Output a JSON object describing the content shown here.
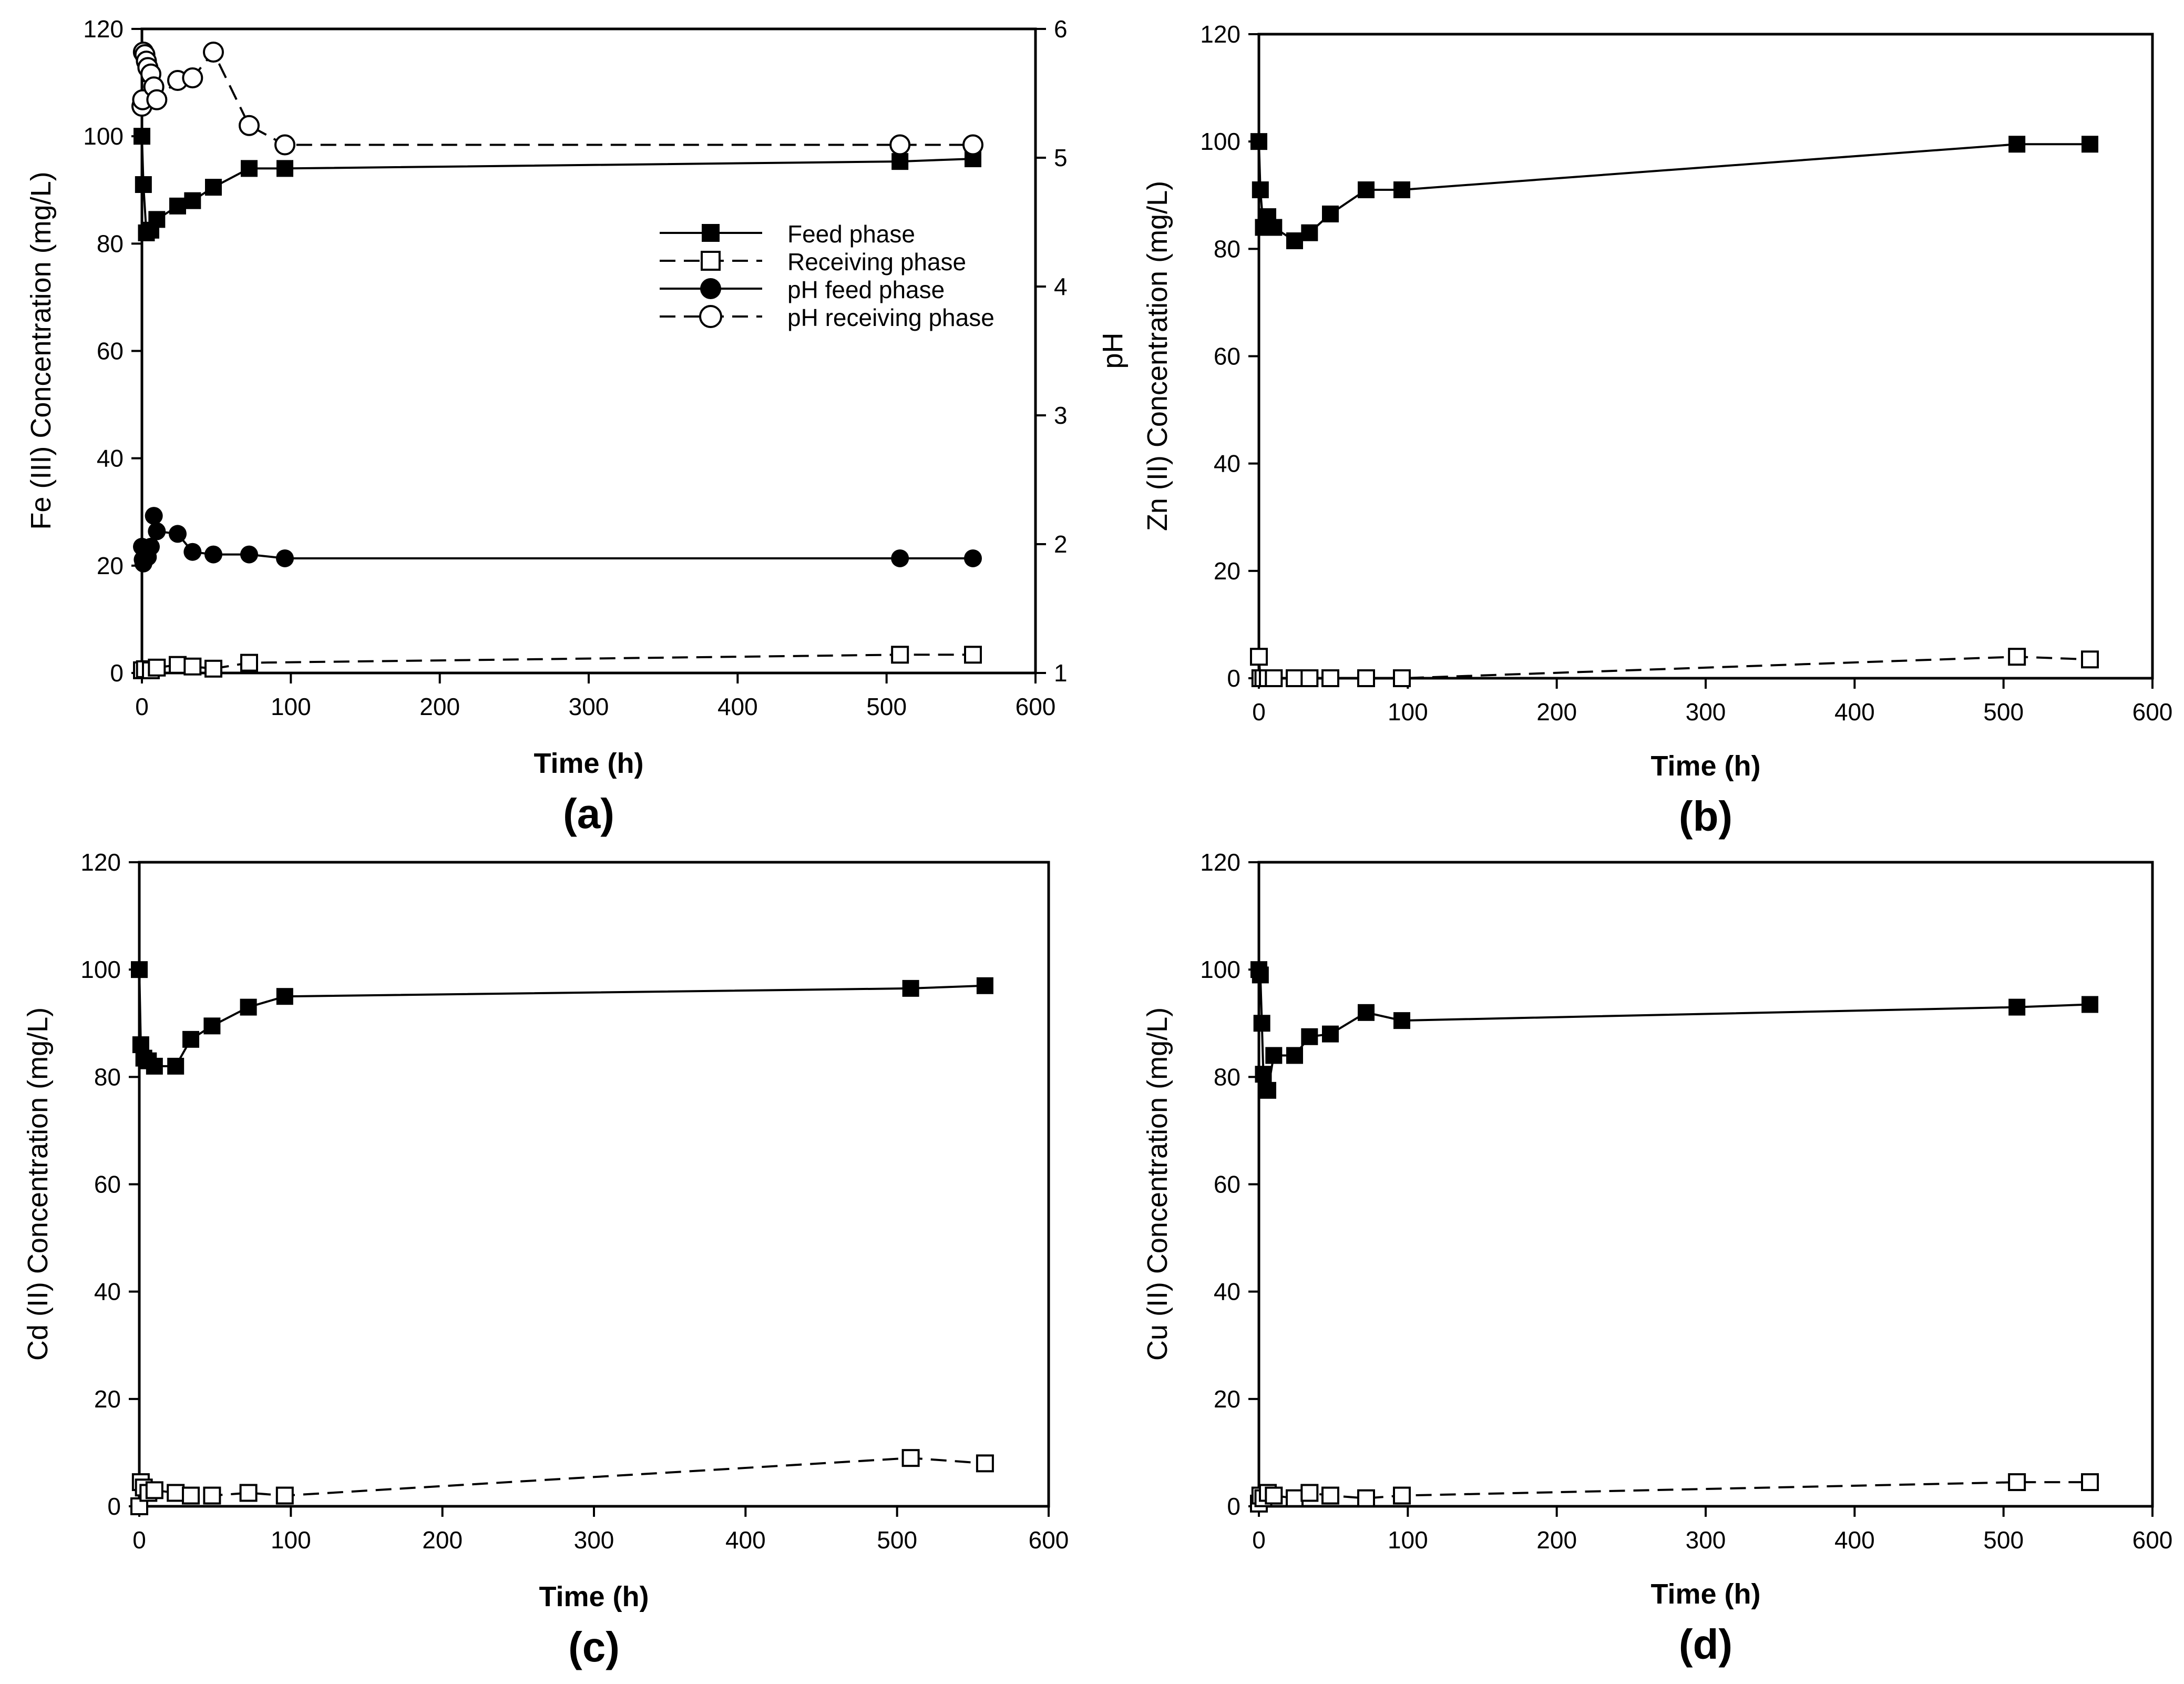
{
  "chart_data": [
    {
      "id": "a",
      "type": "line",
      "panel_label": "(a)",
      "xlabel": "Time (h)",
      "ylabel": "Fe (III) Concentration (mg/L)",
      "y2label": "pH",
      "xlim": [
        0,
        600
      ],
      "ylim": [
        0,
        120
      ],
      "y2lim": [
        1,
        6
      ],
      "xticks": [
        "0",
        "100",
        "200",
        "300",
        "400",
        "500",
        "600"
      ],
      "yticks": [
        "0",
        "20",
        "40",
        "60",
        "80",
        "100",
        "120"
      ],
      "y2ticks": [
        "1",
        "2",
        "3",
        "4",
        "5",
        "6"
      ],
      "legend": [
        "Feed phase",
        "Receiving phase",
        "pH feed phase",
        "pH receiving phase"
      ],
      "series": [
        {
          "name": "Feed phase",
          "axis": "left",
          "marker": "filled-square",
          "line": "solid",
          "x": [
            0,
            1,
            3,
            6,
            10,
            24,
            34,
            48,
            72,
            96,
            509,
            558
          ],
          "y": [
            100,
            91,
            82,
            82.5,
            84.5,
            87,
            88,
            90.5,
            94,
            94,
            95.3,
            95.8
          ]
        },
        {
          "name": "Receiving phase",
          "axis": "left",
          "marker": "open-square",
          "line": "dashed",
          "x": [
            0,
            2,
            6,
            10,
            24,
            34,
            48,
            72,
            509,
            558
          ],
          "y": [
            0.5,
            0.7,
            0.5,
            1,
            1.5,
            1.2,
            0.8,
            1.9,
            3.4,
            3.4
          ]
        },
        {
          "name": "pH feed phase",
          "axis": "right",
          "marker": "filled-circle",
          "line": "solid",
          "x": [
            0,
            0.5,
            1,
            2,
            3,
            4,
            6,
            8,
            10,
            24,
            34,
            48,
            72,
            96,
            509,
            558
          ],
          "y": [
            1.98,
            1.88,
            1.85,
            1.92,
            1.95,
            1.9,
            1.98,
            2.22,
            2.1,
            2.08,
            1.94,
            1.92,
            1.92,
            1.89,
            1.89,
            1.89
          ]
        },
        {
          "name": "pH receiving phase",
          "axis": "right",
          "marker": "open-circle",
          "line": "dashed",
          "x": [
            0,
            0.5,
            1,
            2,
            3,
            4,
            6,
            8,
            10,
            24,
            34,
            48,
            72,
            96,
            509,
            558
          ],
          "y": [
            5.4,
            5.45,
            5.82,
            5.8,
            5.75,
            5.7,
            5.65,
            5.55,
            5.45,
            5.6,
            5.62,
            5.82,
            5.25,
            5.1,
            5.1,
            5.1
          ]
        }
      ]
    },
    {
      "id": "b",
      "type": "line",
      "panel_label": "(b)",
      "xlabel": "Time (h)",
      "ylabel": "Zn (II) Concentration (mg/L)",
      "xlim": [
        0,
        600
      ],
      "ylim": [
        0,
        120
      ],
      "xticks": [
        "0",
        "100",
        "200",
        "300",
        "400",
        "500",
        "600"
      ],
      "yticks": [
        "0",
        "20",
        "40",
        "60",
        "80",
        "100",
        "120"
      ],
      "series": [
        {
          "name": "Feed phase",
          "axis": "left",
          "marker": "filled-square",
          "line": "solid",
          "x": [
            0,
            1,
            3,
            6,
            10,
            24,
            34,
            48,
            72,
            96,
            509,
            558
          ],
          "y": [
            100,
            91,
            84,
            86,
            84,
            81.5,
            83,
            86.5,
            91,
            91,
            99.5,
            99.5
          ]
        },
        {
          "name": "Receiving phase",
          "axis": "left",
          "marker": "open-square",
          "line": "dashed",
          "x": [
            0,
            1,
            3,
            6,
            10,
            24,
            34,
            48,
            72,
            96,
            509,
            558
          ],
          "y": [
            4,
            0,
            0,
            0,
            0,
            0,
            0,
            0,
            0,
            0,
            4,
            3.5
          ]
        }
      ]
    },
    {
      "id": "c",
      "type": "line",
      "panel_label": "(c)",
      "xlabel": "Time (h)",
      "ylabel": "Cd (II) Concentration (mg/L)",
      "xlim": [
        0,
        600
      ],
      "ylim": [
        0,
        120
      ],
      "xticks": [
        "0",
        "100",
        "200",
        "300",
        "400",
        "500",
        "600"
      ],
      "yticks": [
        "0",
        "20",
        "40",
        "60",
        "80",
        "100",
        "120"
      ],
      "series": [
        {
          "name": "Feed phase",
          "axis": "left",
          "marker": "filled-square",
          "line": "solid",
          "x": [
            0,
            1,
            3,
            6,
            10,
            24,
            34,
            48,
            72,
            96,
            509,
            558
          ],
          "y": [
            100,
            86,
            83.5,
            83,
            82,
            82,
            87,
            89.5,
            93,
            95,
            96.5,
            97
          ]
        },
        {
          "name": "Receiving phase",
          "axis": "left",
          "marker": "open-square",
          "line": "dashed",
          "x": [
            0,
            1,
            3,
            6,
            10,
            24,
            34,
            48,
            72,
            96,
            509,
            558
          ],
          "y": [
            0,
            4.5,
            3.5,
            2.5,
            3,
            2.5,
            2,
            2,
            2.5,
            2,
            9,
            8
          ]
        }
      ]
    },
    {
      "id": "d",
      "type": "line",
      "panel_label": "(d)",
      "xlabel": "Time (h)",
      "ylabel": "Cu (II) Concentration (mg/L)",
      "xlim": [
        0,
        600
      ],
      "ylim": [
        0,
        120
      ],
      "xticks": [
        "0",
        "100",
        "200",
        "300",
        "400",
        "500",
        "600"
      ],
      "yticks": [
        "0",
        "20",
        "40",
        "60",
        "80",
        "100",
        "120"
      ],
      "series": [
        {
          "name": "Feed phase",
          "axis": "left",
          "marker": "filled-square",
          "line": "solid",
          "x": [
            0,
            1,
            2,
            3,
            6,
            10,
            24,
            34,
            48,
            72,
            96,
            509,
            558
          ],
          "y": [
            100,
            99,
            90,
            80.5,
            77.5,
            84,
            84,
            87.5,
            88,
            92,
            90.5,
            93,
            93.5
          ]
        },
        {
          "name": "Receiving phase",
          "axis": "left",
          "marker": "open-square",
          "line": "dashed",
          "x": [
            0,
            1,
            3,
            6,
            10,
            24,
            34,
            48,
            72,
            96,
            509,
            558
          ],
          "y": [
            0.5,
            2,
            1.5,
            2.5,
            2,
            1.5,
            2.5,
            2,
            1.5,
            2,
            4.5,
            4.5
          ]
        }
      ]
    }
  ]
}
